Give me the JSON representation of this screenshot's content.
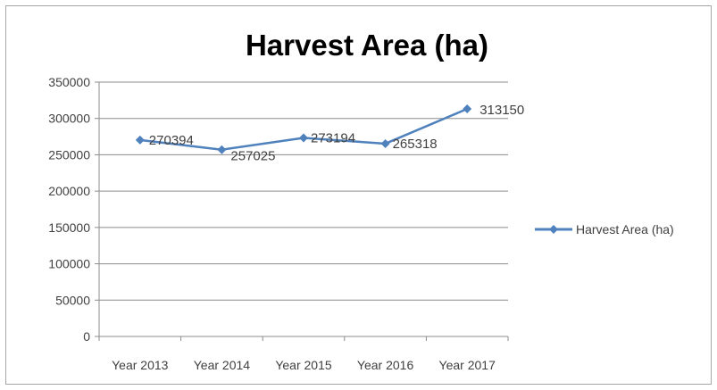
{
  "chart_data": {
    "type": "line",
    "title": "Harvest Area (ha)",
    "xlabel": "",
    "ylabel": "",
    "categories": [
      "Year 2013",
      "Year 2014",
      "Year 2015",
      "Year 2016",
      "Year 2017"
    ],
    "series": [
      {
        "name": "Harvest Area (ha)",
        "values": [
          270394,
          257025,
          273194,
          265318,
          313150
        ],
        "data_labels": [
          "270394",
          "257025",
          "273194",
          "265318",
          "313150"
        ],
        "color": "#4f81bd",
        "marker": "diamond"
      }
    ],
    "ylim": [
      0,
      350000
    ],
    "y_ticks": [
      "0",
      "50000",
      "100000",
      "150000",
      "200000",
      "250000",
      "300000",
      "350000"
    ],
    "grid": true,
    "legend_position": "right"
  }
}
